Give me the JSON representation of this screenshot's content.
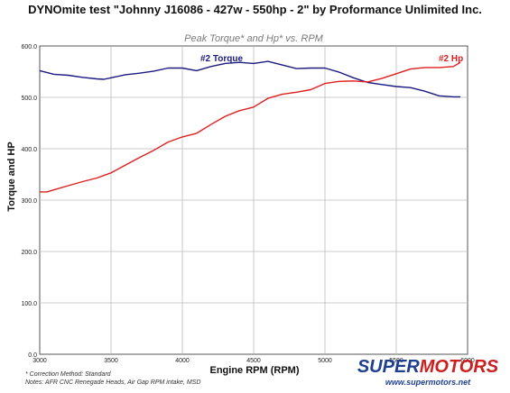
{
  "page_title": "DYNOmite test \"Johnny J16086 - 427w - 550hp - 2\" by Proformance Unlimited Inc.",
  "notes": {
    "line1": "* Correction Method: Standard",
    "line2": "Notes: AFR CNC Renegade Heads, Air Gap RPM intake, MSD"
  },
  "logo": {
    "part1": "SUPER",
    "part2": "MOTORS",
    "url": "www.supermotors.net"
  },
  "colors": {
    "torque": "#1a1a80",
    "hp": "#dd1f1f",
    "grid": "#bcbcbc",
    "plot_bg": "#ffffff",
    "subtitle": "#7a7a7a"
  },
  "chart_data": {
    "type": "line",
    "title": "Peak Torque* and Hp* vs. RPM",
    "xlabel": "Engine RPM (RPM)",
    "ylabel": "Torque and HP",
    "xlim": [
      3000,
      6000
    ],
    "ylim": [
      0,
      600
    ],
    "x_ticks": [
      "3000",
      "3500",
      "4000",
      "4500",
      "5000",
      "5500",
      "6000"
    ],
    "y_ticks": [
      "0.0",
      "100.0",
      "200.0",
      "300.0",
      "400.0",
      "500.0",
      "600.0"
    ],
    "grid": true,
    "series": [
      {
        "name": "#2 Torque",
        "color": "torque",
        "x": [
          3000,
          3100,
          3200,
          3300,
          3400,
          3450,
          3500,
          3600,
          3700,
          3800,
          3900,
          4000,
          4100,
          4200,
          4300,
          4400,
          4500,
          4600,
          4700,
          4800,
          4900,
          5000,
          5100,
          5200,
          5300,
          5400,
          5500,
          5600,
          5700,
          5800,
          5900,
          5950
        ],
        "values": [
          552,
          545,
          543,
          539,
          536,
          535,
          538,
          544,
          547,
          551,
          557,
          557,
          552,
          560,
          566,
          568,
          566,
          570,
          563,
          556,
          557,
          557,
          549,
          538,
          529,
          525,
          521,
          519,
          512,
          503,
          501,
          501
        ]
      },
      {
        "name": "#2 Hp",
        "color": "hp",
        "x": [
          3000,
          3050,
          3100,
          3200,
          3300,
          3400,
          3500,
          3600,
          3700,
          3800,
          3900,
          4000,
          4100,
          4200,
          4300,
          4400,
          4500,
          4600,
          4700,
          4800,
          4900,
          5000,
          5100,
          5200,
          5300,
          5400,
          5500,
          5600,
          5700,
          5800,
          5900,
          5950
        ],
        "values": [
          316,
          316,
          320,
          328,
          336,
          343,
          353,
          368,
          383,
          397,
          413,
          423,
          430,
          447,
          463,
          474,
          481,
          498,
          506,
          510,
          515,
          527,
          531,
          532,
          530,
          537,
          546,
          555,
          558,
          558,
          560,
          568
        ]
      }
    ]
  }
}
